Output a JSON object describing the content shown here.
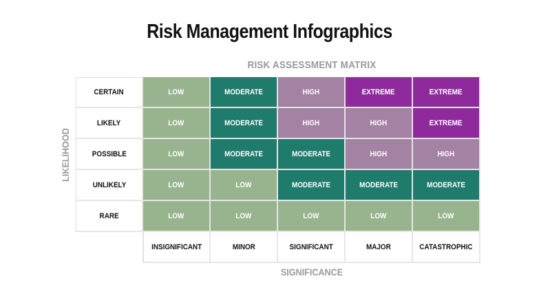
{
  "title": "Risk Management Infographics",
  "matrix_title": "RISK ASSESSMENT MATRIX",
  "y_axis_label": "LIKELIHOOD",
  "x_axis_label": "SIGNIFICANCE",
  "likelihood_levels": [
    "CERTAIN",
    "LIKELY",
    "POSSIBLE",
    "UNLIKELY",
    "RARE"
  ],
  "significance_levels": [
    "INSIGNIFICANT",
    "MINOR",
    "SIGNIFICANT",
    "MAJOR",
    "CATASTROPHIC"
  ],
  "levels": {
    "low": {
      "label": "LOW",
      "color": "#98b48e"
    },
    "moderate": {
      "label": "MODERATE",
      "color": "#1f7b6c"
    },
    "high": {
      "label": "HIGH",
      "color": "#a382a3"
    },
    "extreme": {
      "label": "EXTREME",
      "color": "#8e2a9c"
    }
  },
  "matrix": [
    [
      "LOW",
      "MODERATE",
      "HIGH",
      "EXTREME",
      "EXTREME"
    ],
    [
      "LOW",
      "MODERATE",
      "HIGH",
      "HIGH",
      "EXTREME"
    ],
    [
      "LOW",
      "MODERATE",
      "MODERATE",
      "HIGH",
      "HIGH"
    ],
    [
      "LOW",
      "LOW",
      "MODERATE",
      "MODERATE",
      "MODERATE"
    ],
    [
      "LOW",
      "LOW",
      "LOW",
      "LOW",
      "LOW"
    ]
  ]
}
